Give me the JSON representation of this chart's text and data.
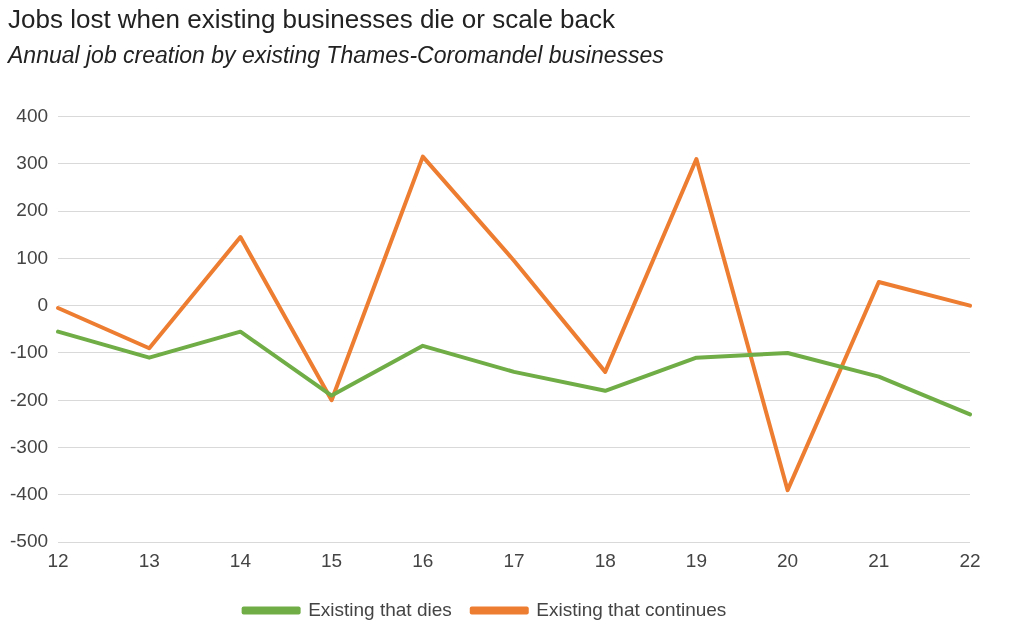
{
  "chart_data": {
    "type": "line",
    "title": "Jobs lost when existing businesses die or scale back",
    "subtitle": "Annual job creation by existing Thames-Coromandel businesses",
    "categories": [
      "12",
      "13",
      "14",
      "15",
      "16",
      "17",
      "18",
      "19",
      "20",
      "21",
      "22"
    ],
    "series": [
      {
        "name": "Existing that dies",
        "color": "#70ad47",
        "values": [
          -55,
          -110,
          -55,
          -190,
          -85,
          -140,
          -180,
          -110,
          -100,
          -150,
          -230
        ]
      },
      {
        "name": "Existing that continues",
        "color": "#ed7d31",
        "values": [
          -5,
          -90,
          145,
          -200,
          315,
          95,
          -140,
          310,
          -390,
          50,
          0
        ]
      }
    ],
    "ylim": [
      -500,
      400
    ],
    "yticks": [
      -500,
      -400,
      -300,
      -200,
      -100,
      0,
      100,
      200,
      300,
      400
    ],
    "grid": "y",
    "legend": "bottom",
    "marker": "none",
    "line_style": "solid"
  }
}
